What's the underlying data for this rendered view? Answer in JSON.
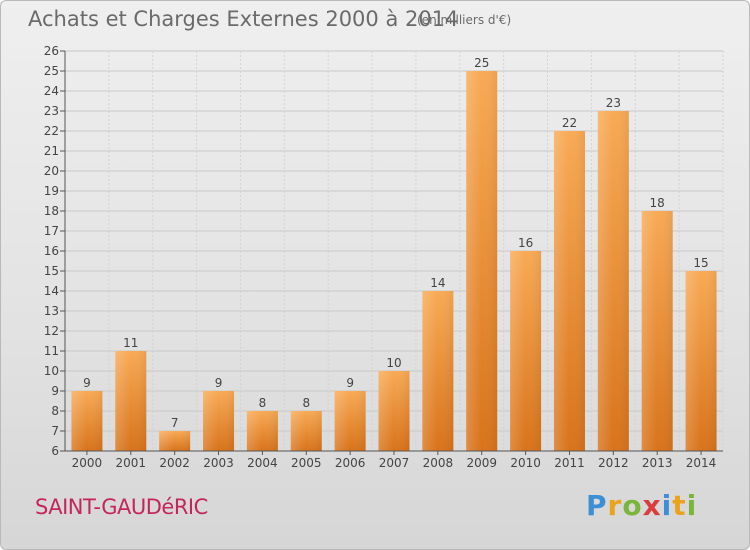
{
  "title": "Achats et Charges Externes 2000 à 2014",
  "subtitle": "(en milliers d'€)",
  "commune": "SAINT-GAUDéRIC",
  "logo": {
    "text": "Proxiti",
    "colors": [
      "#3c8fd6",
      "#e9a31f",
      "#7cb53b",
      "#d93d3d",
      "#3c8fd6",
      "#e9a31f",
      "#7cb53b"
    ]
  },
  "chart_data": {
    "type": "bar",
    "title": "Achats et Charges Externes 2000 à 2014",
    "subtitle": "(en milliers d'€)",
    "xlabel": "",
    "ylabel": "",
    "categories": [
      "2000",
      "2001",
      "2002",
      "2003",
      "2004",
      "2005",
      "2006",
      "2007",
      "2008",
      "2009",
      "2010",
      "2011",
      "2012",
      "2013",
      "2014"
    ],
    "values": [
      9,
      11,
      7,
      9,
      8,
      8,
      9,
      10,
      14,
      25,
      16,
      22,
      23,
      18,
      15
    ],
    "ylim": [
      6,
      26
    ],
    "yticks": [
      6,
      7,
      8,
      9,
      10,
      11,
      12,
      13,
      14,
      15,
      16,
      17,
      18,
      19,
      20,
      21,
      22,
      23,
      24,
      25,
      26
    ],
    "grid": true,
    "bar_color_top": "#f7a64e",
    "bar_color_bottom": "#d9741a",
    "show_data_labels": true
  }
}
